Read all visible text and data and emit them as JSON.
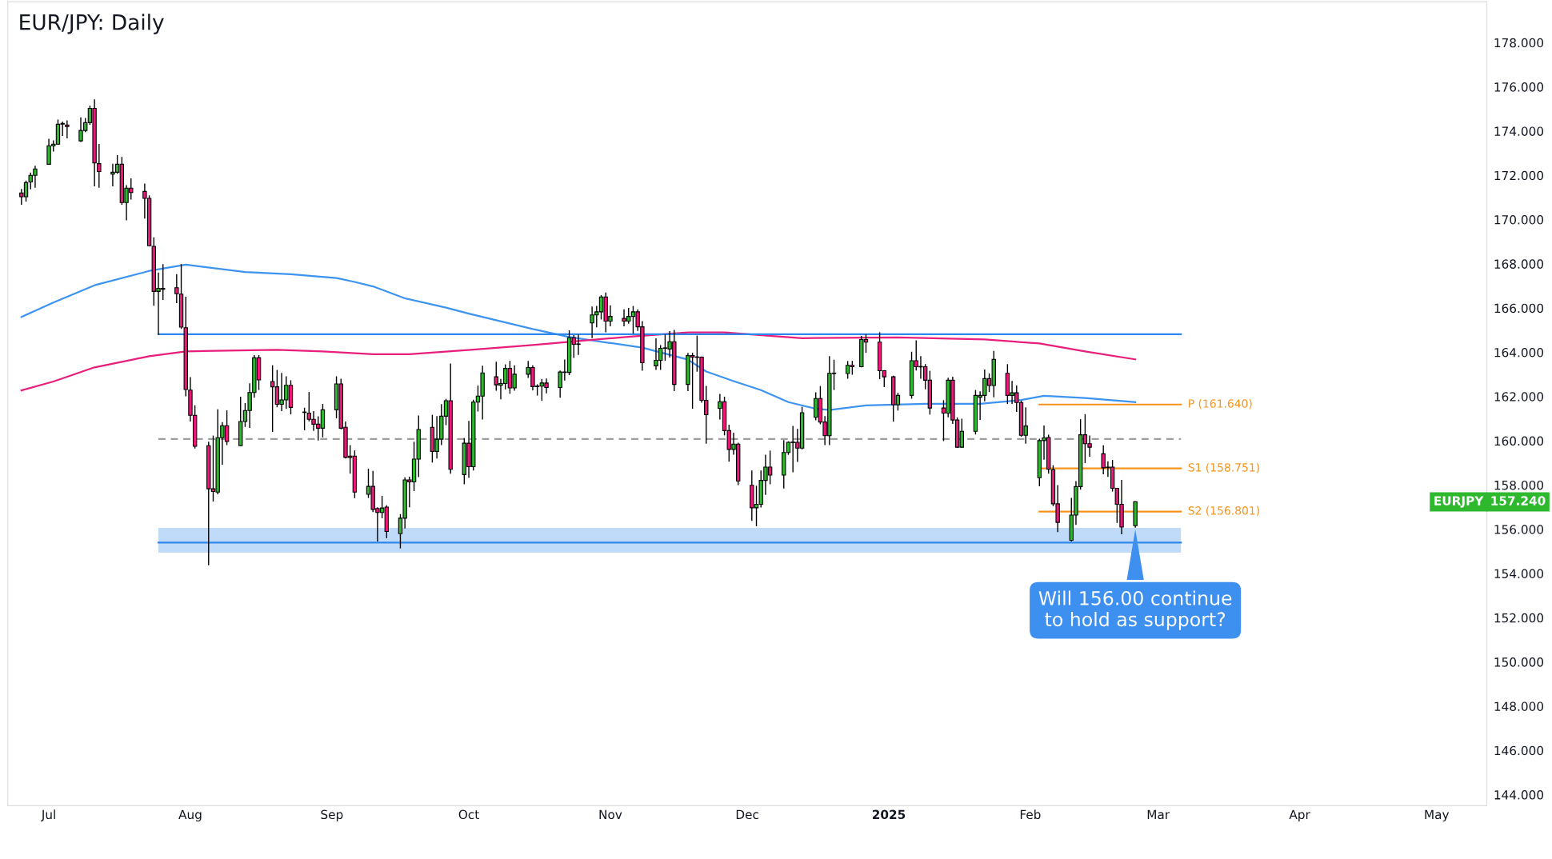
{
  "chart_data": {
    "type": "candlestick",
    "title": "EUR/JPY: Daily",
    "x": [
      "2024-06-25",
      "2024-06-26",
      "2024-06-27",
      "2024-06-28",
      "2024-07-01",
      "2024-07-02",
      "2024-07-03",
      "2024-07-04",
      "2024-07-05",
      "2024-07-08",
      "2024-07-09",
      "2024-07-10",
      "2024-07-11",
      "2024-07-12",
      "2024-07-15",
      "2024-07-16",
      "2024-07-17",
      "2024-07-18",
      "2024-07-19",
      "2024-07-22",
      "2024-07-23",
      "2024-07-24",
      "2024-07-25",
      "2024-07-26",
      "2024-07-29",
      "2024-07-30",
      "2024-07-31",
      "2024-08-01",
      "2024-08-02",
      "2024-08-05",
      "2024-08-06",
      "2024-08-07",
      "2024-08-08",
      "2024-08-09",
      "2024-08-12",
      "2024-08-13",
      "2024-08-14",
      "2024-08-15",
      "2024-08-16",
      "2024-08-19",
      "2024-08-20",
      "2024-08-21",
      "2024-08-22",
      "2024-08-23",
      "2024-08-26",
      "2024-08-27",
      "2024-08-28",
      "2024-08-29",
      "2024-08-30",
      "2024-09-02",
      "2024-09-03",
      "2024-09-04",
      "2024-09-05",
      "2024-09-06",
      "2024-09-09",
      "2024-09-10",
      "2024-09-11",
      "2024-09-12",
      "2024-09-13",
      "2024-09-16",
      "2024-09-17",
      "2024-09-18",
      "2024-09-19",
      "2024-09-20",
      "2024-09-23",
      "2024-09-24",
      "2024-09-25",
      "2024-09-26",
      "2024-09-27",
      "2024-09-30",
      "2024-10-01",
      "2024-10-02",
      "2024-10-03",
      "2024-10-04",
      "2024-10-07",
      "2024-10-08",
      "2024-10-09",
      "2024-10-10",
      "2024-10-11",
      "2024-10-14",
      "2024-10-15",
      "2024-10-16",
      "2024-10-17",
      "2024-10-18",
      "2024-10-21",
      "2024-10-22",
      "2024-10-23",
      "2024-10-24",
      "2024-10-25",
      "2024-10-28",
      "2024-10-29",
      "2024-10-30",
      "2024-10-31",
      "2024-11-01",
      "2024-11-04",
      "2024-11-05",
      "2024-11-06",
      "2024-11-07",
      "2024-11-08",
      "2024-11-11",
      "2024-11-12",
      "2024-11-13",
      "2024-11-14",
      "2024-11-15",
      "2024-11-18",
      "2024-11-19",
      "2024-11-20",
      "2024-11-21",
      "2024-11-22",
      "2024-11-25",
      "2024-11-26",
      "2024-11-27",
      "2024-11-28",
      "2024-11-29",
      "2024-12-02",
      "2024-12-03",
      "2024-12-04",
      "2024-12-05",
      "2024-12-06",
      "2024-12-09",
      "2024-12-10",
      "2024-12-11",
      "2024-12-12",
      "2024-12-13",
      "2024-12-16",
      "2024-12-17",
      "2024-12-18",
      "2024-12-19",
      "2024-12-20",
      "2024-12-23",
      "2024-12-24",
      "2024-12-26",
      "2024-12-27",
      "2024-12-30",
      "2024-12-31",
      "2025-01-02",
      "2025-01-03",
      "2025-01-06",
      "2025-01-07",
      "2025-01-08",
      "2025-01-09",
      "2025-01-10",
      "2025-01-13",
      "2025-01-14",
      "2025-01-15",
      "2025-01-16",
      "2025-01-17",
      "2025-01-20",
      "2025-01-21",
      "2025-01-22",
      "2025-01-23",
      "2025-01-24",
      "2025-01-27",
      "2025-01-28",
      "2025-01-29",
      "2025-01-30",
      "2025-01-31",
      "2025-02-03",
      "2025-02-04",
      "2025-02-05",
      "2025-02-06",
      "2025-02-07",
      "2025-02-10",
      "2025-02-11",
      "2025-02-12",
      "2025-02-13",
      "2025-02-14",
      "2025-02-17",
      "2025-02-18",
      "2025-02-19",
      "2025-02-20",
      "2025-02-21",
      "2025-02-24"
    ],
    "ohlc": [
      [
        171.2,
        171.36,
        170.7,
        171.03
      ],
      [
        171.03,
        171.74,
        170.84,
        171.67
      ],
      [
        171.7,
        172.1,
        171.39,
        172.0
      ],
      [
        172.0,
        172.41,
        171.46,
        172.29
      ],
      [
        172.5,
        173.63,
        172.5,
        173.34
      ],
      [
        173.34,
        173.56,
        173.1,
        173.41
      ],
      [
        173.41,
        174.5,
        173.41,
        174.31
      ],
      [
        174.32,
        174.41,
        173.81,
        174.35
      ],
      [
        174.28,
        174.46,
        173.7,
        174.21
      ],
      [
        173.56,
        174.6,
        173.53,
        174.03
      ],
      [
        174.03,
        174.57,
        173.98,
        174.38
      ],
      [
        174.38,
        175.13,
        174.31,
        175.03
      ],
      [
        175.03,
        175.41,
        171.53,
        172.56
      ],
      [
        172.53,
        173.39,
        171.46,
        172.17
      ],
      [
        172.06,
        172.5,
        171.53,
        172.14
      ],
      [
        172.14,
        172.89,
        172.1,
        172.5
      ],
      [
        172.5,
        172.81,
        170.7,
        170.77
      ],
      [
        170.77,
        171.53,
        169.99,
        171.42
      ],
      [
        171.42,
        171.84,
        170.93,
        171.22
      ],
      [
        171.27,
        171.6,
        170.07,
        170.96
      ],
      [
        170.96,
        171.07,
        168.82,
        168.82
      ],
      [
        168.79,
        169.17,
        166.13,
        166.75
      ],
      [
        166.75,
        167.58,
        164.82,
        166.89
      ],
      [
        166.89,
        167.96,
        166.39,
        166.85
      ],
      [
        166.92,
        167.51,
        166.25,
        166.65
      ],
      [
        166.63,
        167.96,
        165.08,
        165.14
      ],
      [
        165.11,
        166.49,
        162.04,
        162.32
      ],
      [
        162.29,
        162.85,
        160.9,
        161.15
      ],
      [
        161.15,
        161.58,
        159.68,
        159.75
      ],
      [
        159.78,
        159.93,
        154.4,
        157.83
      ],
      [
        157.83,
        160.21,
        157.28,
        157.71
      ],
      [
        157.68,
        161.4,
        157.61,
        160.14
      ],
      [
        160.14,
        160.82,
        158.94,
        160.68
      ],
      [
        160.68,
        161.35,
        159.83,
        159.97
      ],
      [
        159.78,
        161.97,
        159.78,
        160.87
      ],
      [
        160.87,
        161.68,
        160.65,
        161.37
      ],
      [
        161.37,
        162.57,
        160.61,
        162.18
      ],
      [
        162.18,
        163.85,
        161.97,
        163.75
      ],
      [
        163.75,
        163.85,
        162.32,
        162.75
      ],
      [
        162.68,
        163.39,
        160.43,
        162.44
      ],
      [
        162.44,
        163.18,
        161.54,
        161.65
      ],
      [
        161.65,
        163.04,
        161.37,
        161.85
      ],
      [
        161.85,
        162.89,
        161.47,
        162.51
      ],
      [
        162.51,
        162.71,
        161.22,
        161.51
      ],
      [
        161.3,
        161.47,
        160.5,
        161.28
      ],
      [
        161.25,
        162.18,
        160.9,
        160.97
      ],
      [
        160.97,
        161.32,
        160.47,
        160.75
      ],
      [
        160.75,
        161.08,
        160.04,
        160.57
      ],
      [
        160.57,
        161.64,
        160.18,
        161.4
      ],
      [
        161.4,
        162.89,
        161.04,
        162.57
      ],
      [
        162.57,
        162.78,
        160.54,
        160.57
      ],
      [
        160.61,
        160.85,
        159.22,
        159.25
      ],
      [
        159.31,
        159.78,
        158.54,
        159.25
      ],
      [
        159.31,
        159.54,
        157.43,
        157.68
      ],
      [
        157.58,
        158.71,
        157.44,
        157.94
      ],
      [
        157.94,
        158.61,
        156.8,
        156.9
      ],
      [
        156.94,
        156.97,
        155.47,
        156.76
      ],
      [
        156.76,
        157.48,
        156.52,
        156.96
      ],
      [
        157.0,
        157.06,
        155.62,
        155.9
      ],
      [
        155.8,
        156.66,
        155.16,
        156.5
      ],
      [
        156.5,
        158.32,
        156.06,
        158.23
      ],
      [
        158.23,
        158.35,
        157.02,
        158.14
      ],
      [
        158.14,
        159.93,
        157.75,
        159.17
      ],
      [
        159.17,
        161.12,
        158.38,
        160.51
      ],
      [
        160.61,
        161.15,
        159.04,
        159.52
      ],
      [
        159.52,
        161.09,
        159.22,
        160.07
      ],
      [
        160.07,
        161.63,
        159.83,
        161.11
      ],
      [
        161.11,
        161.87,
        160.73,
        161.81
      ],
      [
        161.81,
        163.47,
        158.54,
        158.71
      ],
      [
        158.47,
        160.1,
        158.06,
        159.89
      ],
      [
        159.89,
        160.87,
        158.35,
        158.83
      ],
      [
        158.83,
        161.83,
        158.68,
        161.75
      ],
      [
        161.75,
        162.47,
        161.35,
        162.02
      ],
      [
        162.02,
        163.37,
        160.99,
        163.07
      ],
      [
        162.89,
        163.55,
        162.29,
        162.53
      ],
      [
        162.51,
        162.77,
        161.9,
        162.59
      ],
      [
        162.59,
        163.43,
        162.35,
        163.27
      ],
      [
        163.27,
        163.59,
        162.15,
        162.39
      ],
      [
        162.39,
        163.39,
        162.29,
        163.01
      ],
      [
        163.01,
        163.59,
        162.87,
        163.31
      ],
      [
        163.31,
        163.39,
        162.31,
        162.45
      ],
      [
        162.47,
        162.53,
        162.07,
        162.45
      ],
      [
        162.47,
        162.77,
        161.83,
        162.61
      ],
      [
        162.61,
        162.79,
        162.17,
        162.41
      ],
      [
        162.41,
        163.15,
        161.97,
        163.11
      ],
      [
        163.09,
        163.65,
        162.75,
        163.1
      ],
      [
        163.09,
        164.97,
        162.99,
        164.66
      ],
      [
        164.66,
        164.75,
        163.77,
        164.36
      ],
      [
        164.36,
        164.78,
        163.91,
        164.38
      ],
      [
        165.33,
        166.04,
        164.67,
        165.69
      ],
      [
        165.69,
        166.07,
        165.15,
        165.83
      ],
      [
        165.83,
        166.56,
        165.51,
        166.5
      ],
      [
        166.5,
        166.68,
        164.93,
        165.41
      ],
      [
        165.41,
        166.1,
        165.2,
        165.62
      ],
      [
        165.53,
        165.92,
        165.2,
        165.41
      ],
      [
        165.41,
        165.98,
        165.32,
        165.62
      ],
      [
        165.62,
        166.07,
        164.87,
        165.83
      ],
      [
        165.83,
        165.92,
        164.99,
        165.15
      ],
      [
        165.15,
        165.38,
        163.19,
        163.53
      ],
      [
        163.39,
        164.61,
        163.23,
        163.64
      ],
      [
        163.64,
        164.3,
        163.23,
        164.18
      ],
      [
        164.2,
        164.79,
        163.64,
        164.18
      ],
      [
        164.15,
        164.93,
        163.79,
        164.48
      ],
      [
        164.48,
        164.99,
        162.27,
        162.55
      ],
      [
        162.55,
        163.95,
        162.27,
        163.85
      ],
      [
        163.85,
        163.95,
        161.47,
        163.78
      ],
      [
        163.79,
        164.73,
        163.15,
        163.77
      ],
      [
        163.78,
        163.78,
        161.75,
        161.83
      ],
      [
        161.83,
        162.46,
        159.89,
        161.18
      ],
      [
        161.47,
        162.09,
        160.99,
        161.76
      ],
      [
        161.76,
        161.97,
        160.27,
        160.46
      ],
      [
        160.46,
        160.7,
        159.08,
        159.61
      ],
      [
        159.61,
        160.34,
        159.4,
        159.85
      ],
      [
        159.85,
        159.89,
        158.02,
        158.18
      ],
      [
        157.99,
        158.63,
        156.4,
        156.97
      ],
      [
        156.97,
        157.94,
        156.16,
        157.13
      ],
      [
        157.13,
        158.63,
        157.01,
        158.21
      ],
      [
        158.21,
        159.35,
        157.58,
        158.81
      ],
      [
        158.81,
        159.53,
        158.06,
        158.45
      ],
      [
        158.45,
        160.01,
        157.87,
        159.47
      ],
      [
        159.47,
        159.95,
        159.39,
        159.93
      ],
      [
        159.92,
        160.65,
        158.6,
        159.94
      ],
      [
        159.93,
        160.51,
        159.07,
        159.67
      ],
      [
        159.67,
        161.51,
        159.63,
        161.27
      ],
      [
        161.06,
        162.17,
        160.95,
        161.91
      ],
      [
        161.91,
        162.45,
        160.77,
        160.85
      ],
      [
        160.85,
        161.09,
        159.83,
        160.23
      ],
      [
        160.23,
        163.8,
        159.83,
        163.05
      ],
      [
        163.04,
        163.64,
        162.32,
        163.06
      ],
      [
        163.04,
        163.58,
        162.83,
        163.41
      ],
      [
        163.41,
        163.59,
        163.01,
        163.35
      ],
      [
        163.35,
        164.72,
        163.35,
        164.58
      ],
      [
        164.58,
        164.79,
        164.0,
        164.46
      ],
      [
        164.46,
        164.88,
        162.81,
        163.17
      ],
      [
        163.17,
        163.17,
        162.45,
        162.89
      ],
      [
        162.89,
        162.92,
        160.89,
        161.63
      ],
      [
        161.63,
        162.15,
        161.39,
        162.05
      ],
      [
        162.05,
        164.0,
        161.93,
        163.62
      ],
      [
        163.62,
        164.52,
        163.2,
        163.35
      ],
      [
        163.36,
        163.8,
        162.83,
        163.34
      ],
      [
        163.35,
        163.44,
        162.35,
        162.74
      ],
      [
        162.74,
        163.14,
        161.21,
        161.48
      ],
      [
        161.48,
        161.81,
        160.01,
        161.25
      ],
      [
        161.25,
        162.83,
        161.09,
        162.74
      ],
      [
        162.74,
        162.87,
        160.79,
        160.94
      ],
      [
        160.94,
        161.03,
        159.71,
        159.71
      ],
      [
        159.71,
        160.97,
        159.71,
        160.43
      ],
      [
        160.43,
        162.27,
        160.31,
        162.05
      ],
      [
        161.97,
        162.21,
        160.97,
        162.05
      ],
      [
        162.05,
        163.2,
        161.81,
        162.81
      ],
      [
        162.81,
        163.02,
        162.23,
        162.5
      ],
      [
        162.5,
        164.04,
        161.99,
        163.68
      ],
      [
        163.05,
        163.44,
        161.69,
        162.05
      ],
      [
        162.05,
        162.68,
        161.69,
        162.17
      ],
      [
        162.17,
        162.47,
        161.33,
        161.73
      ],
      [
        161.73,
        161.79,
        160.21,
        160.25
      ],
      [
        160.25,
        161.49,
        159.89,
        160.67
      ],
      [
        158.33,
        160.07,
        157.97,
        160.01
      ],
      [
        160.01,
        160.67,
        159.17,
        160.13
      ],
      [
        160.15,
        160.25,
        158.54,
        158.71
      ],
      [
        158.69,
        158.87,
        157.07,
        157.15
      ],
      [
        157.15,
        157.97,
        155.9,
        156.31
      ],
      [
        155.5,
        157.39,
        155.47,
        156.64
      ],
      [
        156.64,
        158.15,
        156.22,
        157.93
      ],
      [
        157.93,
        160.95,
        157.82,
        160.27
      ],
      [
        160.27,
        161.18,
        159.02,
        159.87
      ],
      [
        159.87,
        160.21,
        159.31,
        159.71
      ],
      [
        159.41,
        159.77,
        158.51,
        158.78
      ],
      [
        158.81,
        159.05,
        158.39,
        158.79
      ],
      [
        158.81,
        159.11,
        157.73,
        157.85
      ],
      [
        157.85,
        157.85,
        156.31,
        157.13
      ],
      [
        157.13,
        158.21,
        155.8,
        156.1
      ],
      [
        156.16,
        157.24,
        156.1,
        157.24
      ]
    ],
    "colors": [
      "#f0177a",
      "#2eb82e",
      "#2eb82e",
      "#2eb82e",
      "#2eb82e",
      "#2eb82e",
      "#2eb82e",
      "#2eb82e",
      "#f0177a",
      "#2eb82e",
      "#2eb82e",
      "#2eb82e",
      "#f0177a",
      "#f0177a",
      "#2eb82e",
      "#2eb82e",
      "#f0177a",
      "#2eb82e",
      "#f0177a",
      "#f0177a",
      "#f0177a",
      "#f0177a",
      "#2eb82e",
      "#f0177a",
      "#f0177a",
      "#f0177a",
      "#f0177a",
      "#f0177a",
      "#f0177a",
      "#f0177a",
      "#f0177a",
      "#2eb82e",
      "#2eb82e",
      "#f0177a",
      "#2eb82e",
      "#2eb82e",
      "#2eb82e",
      "#2eb82e",
      "#f0177a",
      "#f0177a",
      "#f0177a",
      "#2eb82e",
      "#2eb82e",
      "#f0177a",
      "#f0177a",
      "#f0177a",
      "#f0177a",
      "#f0177a",
      "#2eb82e",
      "#2eb82e",
      "#f0177a",
      "#f0177a",
      "#f0177a",
      "#f0177a",
      "#2eb82e",
      "#f0177a",
      "#f0177a",
      "#2eb82e",
      "#f0177a",
      "#2eb82e",
      "#2eb82e",
      "#f0177a",
      "#2eb82e",
      "#2eb82e",
      "#f0177a",
      "#2eb82e",
      "#2eb82e",
      "#2eb82e",
      "#f0177a",
      "#2eb82e",
      "#f0177a",
      "#2eb82e",
      "#2eb82e",
      "#2eb82e",
      "#f0177a",
      "#2eb82e",
      "#2eb82e",
      "#f0177a",
      "#2eb82e",
      "#2eb82e",
      "#f0177a",
      "#f0177a",
      "#2eb82e",
      "#f0177a",
      "#2eb82e",
      "#2eb82e",
      "#2eb82e",
      "#f0177a",
      "#2eb82e",
      "#2eb82e",
      "#2eb82e",
      "#2eb82e",
      "#f0177a",
      "#2eb82e",
      "#f0177a",
      "#2eb82e",
      "#2eb82e",
      "#f0177a",
      "#f0177a",
      "#2eb82e",
      "#2eb82e",
      "#f0177a",
      "#2eb82e",
      "#f0177a",
      "#2eb82e",
      "#f0177a",
      "#f0177a",
      "#f0177a",
      "#f0177a",
      "#2eb82e",
      "#f0177a",
      "#f0177a",
      "#2eb82e",
      "#f0177a",
      "#f0177a",
      "#2eb82e",
      "#2eb82e",
      "#2eb82e",
      "#f0177a",
      "#2eb82e",
      "#2eb82e",
      "#2eb82e",
      "#f0177a",
      "#2eb82e",
      "#2eb82e",
      "#f0177a",
      "#f0177a",
      "#2eb82e",
      "#2eb82e",
      "#2eb82e",
      "#f0177a",
      "#2eb82e",
      "#f0177a",
      "#f0177a",
      "#f0177a",
      "#f0177a",
      "#2eb82e",
      "#2eb82e",
      "#f0177a",
      "#f0177a",
      "#f0177a",
      "#f0177a",
      "#f0177a",
      "#2eb82e",
      "#f0177a",
      "#f0177a",
      "#2eb82e",
      "#2eb82e",
      "#2eb82e",
      "#2eb82e",
      "#f0177a",
      "#2eb82e",
      "#f0177a",
      "#2eb82e",
      "#f0177a",
      "#f0177a",
      "#2eb82e",
      "#2eb82e",
      "#2eb82e",
      "#f0177a",
      "#f0177a",
      "#f0177a",
      "#2eb82e",
      "#2eb82e",
      "#2eb82e",
      "#f0177a",
      "#f0177a",
      "#f0177a",
      "#f0177a",
      "#f0177a",
      "#f0177a",
      "#f0177a",
      "#2eb82e"
    ],
    "series": [
      {
        "type": "line",
        "color": "#3d94f0",
        "x": [
          "2024-06-25",
          "2024-07-02",
          "2024-07-11",
          "2024-07-23",
          "2024-07-31",
          "2024-08-13",
          "2024-08-23",
          "2024-09-02",
          "2024-09-06",
          "2024-09-10",
          "2024-09-17",
          "2024-09-26",
          "2024-10-01",
          "2024-10-15",
          "2024-10-23",
          "2024-10-31",
          "2024-11-08",
          "2024-11-18",
          "2024-11-22",
          "2024-11-28",
          "2024-12-04",
          "2024-12-10",
          "2024-12-16",
          "2024-12-19",
          "2024-12-27",
          "2025-01-09",
          "2025-01-21",
          "2025-01-30",
          "2025-02-04",
          "2025-02-13",
          "2025-02-24"
        ],
        "values": [
          165.6,
          166.25,
          167.03,
          167.68,
          167.96,
          167.63,
          167.53,
          167.36,
          167.18,
          166.98,
          166.44,
          166.02,
          165.75,
          165.05,
          164.69,
          164.45,
          164.21,
          163.67,
          163.13,
          162.7,
          162.29,
          161.75,
          161.45,
          161.39,
          161.6,
          161.67,
          161.67,
          161.84,
          162.03,
          161.93,
          161.75
        ]
      },
      {
        "type": "line",
        "color": "#e91e7b",
        "x": [
          "2024-06-25",
          "2024-07-02",
          "2024-07-11",
          "2024-07-23",
          "2024-07-31",
          "2024-08-09",
          "2024-08-20",
          "2024-08-30",
          "2024-09-10",
          "2024-09-18",
          "2024-10-02",
          "2024-10-15",
          "2024-10-25",
          "2024-11-06",
          "2024-11-18",
          "2024-11-26",
          "2024-12-13",
          "2025-01-03",
          "2025-01-22",
          "2025-02-03",
          "2025-02-13",
          "2025-02-24"
        ],
        "values": [
          162.28,
          162.68,
          163.32,
          163.82,
          164.04,
          164.08,
          164.11,
          164.04,
          163.91,
          163.91,
          164.12,
          164.33,
          164.51,
          164.72,
          164.9,
          164.9,
          164.64,
          164.67,
          164.58,
          164.4,
          164.04,
          163.68
        ]
      },
      {
        "type": "line",
        "color": "#2f87ec",
        "x": [
          "2024-07-25",
          "2025-03-06"
        ],
        "values": [
          164.82,
          164.82
        ]
      },
      {
        "type": "line",
        "color": "#2f87ec",
        "x": [
          "2024-07-25",
          "2025-03-06"
        ],
        "values": [
          155.4,
          155.4
        ],
        "lower": [
          154.94,
          154.94
        ],
        "upper": [
          156.06,
          156.06
        ]
      },
      {
        "type": "line",
        "color": "#9e9e9e",
        "line_style": "dashed",
        "x": [
          "2024-07-25",
          "2025-03-06"
        ],
        "values": [
          160.08,
          160.08
        ]
      },
      {
        "type": "line",
        "name": "P (161.640)",
        "color": "#f7931a",
        "x": [
          "2025-02-03",
          "2025-03-06"
        ],
        "values": [
          161.64,
          161.64
        ]
      },
      {
        "type": "line",
        "name": "S1 (158.751)",
        "color": "#f7931a",
        "x": [
          "2025-02-03",
          "2025-03-06"
        ],
        "values": [
          158.751,
          158.751
        ]
      },
      {
        "type": "line",
        "name": "S2 (156.801)",
        "color": "#f7931a",
        "x": [
          "2025-02-03",
          "2025-03-06"
        ],
        "values": [
          156.801,
          156.801
        ]
      }
    ],
    "annotations": [
      "Will 156.00 continue\nto hold as support?",
      "EURJPY",
      "157.240"
    ],
    "xlim": [
      "2024-06-22",
      "2025-05-12"
    ],
    "xticks": [
      {
        "value": "2024-07-01",
        "label": "Jul"
      },
      {
        "value": "2024-08-01",
        "label": "Aug"
      },
      {
        "value": "2024-09-01",
        "label": "Sep"
      },
      {
        "value": "2024-10-01",
        "label": "Oct"
      },
      {
        "value": "2024-11-01",
        "label": "Nov"
      },
      {
        "value": "2024-12-01",
        "label": "Dec"
      },
      {
        "value": "2025-01-01",
        "label": "2025"
      },
      {
        "value": "2025-02-01",
        "label": "Feb"
      },
      {
        "value": "2025-03-01",
        "label": "Mar"
      },
      {
        "value": "2025-04-01",
        "label": "Apr"
      },
      {
        "value": "2025-05-01",
        "label": "May"
      }
    ],
    "ylim": [
      143.5,
      179.85
    ],
    "yticks": [
      {
        "value": 144,
        "label": "144.000"
      },
      {
        "value": 146,
        "label": "146.000"
      },
      {
        "value": 148,
        "label": "148.000"
      },
      {
        "value": 150,
        "label": "150.000"
      },
      {
        "value": 152,
        "label": "152.000"
      },
      {
        "value": 154,
        "label": "154.000"
      },
      {
        "value": 156,
        "label": "156.000"
      },
      {
        "value": 158,
        "label": "158.000"
      },
      {
        "value": 160,
        "label": "160.000"
      },
      {
        "value": 162,
        "label": "162.000"
      },
      {
        "value": 164,
        "label": "164.000"
      },
      {
        "value": 166,
        "label": "166.000"
      },
      {
        "value": 168,
        "label": "168.000"
      },
      {
        "value": 170,
        "label": "170.000"
      },
      {
        "value": 172,
        "label": "172.000"
      },
      {
        "value": 174,
        "label": "174.000"
      },
      {
        "value": 176,
        "label": "176.000"
      },
      {
        "value": 178,
        "label": "178.000"
      }
    ]
  }
}
